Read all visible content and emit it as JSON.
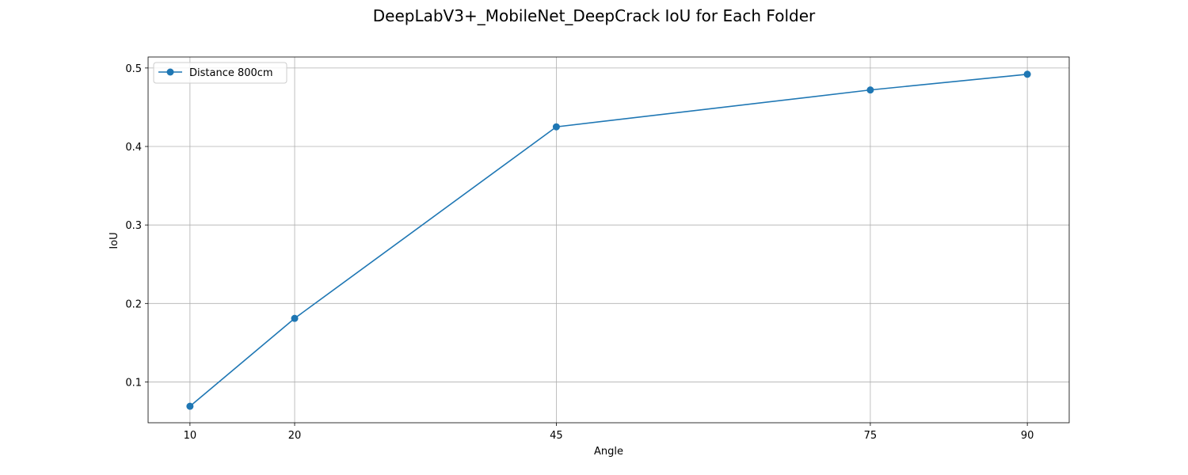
{
  "chart_data": {
    "type": "line",
    "title": "DeepLabV3+_MobileNet_DeepCrack IoU for Each Folder",
    "xlabel": "Angle",
    "ylabel": "IoU",
    "x": [
      10,
      20,
      45,
      75,
      90
    ],
    "x_tick_labels": [
      "10",
      "20",
      "45",
      "75",
      "90"
    ],
    "y_ticks": [
      0.1,
      0.2,
      0.3,
      0.4,
      0.5
    ],
    "y_tick_labels": [
      "0.1",
      "0.2",
      "0.3",
      "0.4",
      "0.5"
    ],
    "xlim": [
      6,
      94
    ],
    "ylim": [
      0.048,
      0.514
    ],
    "grid": true,
    "legend_position": "top-left",
    "series": [
      {
        "name": "Distance 800cm",
        "color": "#1f77b4",
        "marker": "circle",
        "values": [
          0.069,
          0.181,
          0.425,
          0.472,
          0.492
        ]
      }
    ]
  }
}
